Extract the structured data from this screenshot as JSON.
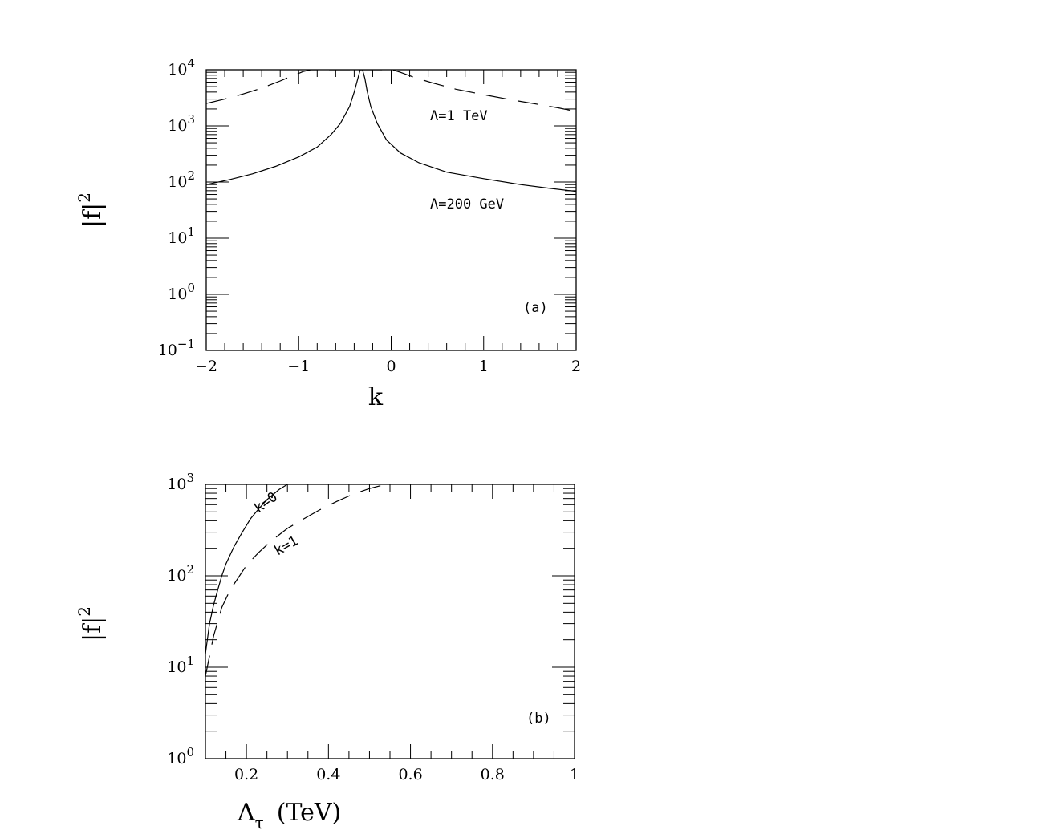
{
  "chart_data": [
    {
      "id": "a",
      "type": "line",
      "panel_label": "(a)",
      "xlabel": "k",
      "ylabel": "|f|",
      "ylabel_sup": "2",
      "xlim": [
        -2,
        2
      ],
      "ylim": [
        0.1,
        10000
      ],
      "yscale": "log",
      "x_ticks": [
        -2,
        -1,
        0,
        1,
        2
      ],
      "x_tick_labels": [
        "−2",
        "−1",
        "0",
        "1",
        "2"
      ],
      "y_ticks": [
        0.1,
        1,
        10,
        100,
        1000,
        10000
      ],
      "y_tick_labels": [
        {
          "base": "10",
          "exp": "−1"
        },
        {
          "base": "10",
          "exp": "0"
        },
        {
          "base": "10",
          "exp": "1"
        },
        {
          "base": "10",
          "exp": "2"
        },
        {
          "base": "10",
          "exp": "3"
        },
        {
          "base": "10",
          "exp": "4"
        }
      ],
      "annotations": [
        "Λ=1 TeV",
        "Λ=200 GeV"
      ],
      "series": [
        {
          "style": "solid",
          "x": [
            -2.0,
            -1.75,
            -1.5,
            -1.25,
            -1.0,
            -0.8,
            -0.65,
            -0.55,
            -0.45,
            -0.4,
            -0.36,
            -0.335,
            -0.31,
            -0.285,
            -0.26,
            -0.22,
            -0.15,
            -0.05,
            0.1,
            0.3,
            0.6,
            1.0,
            1.4,
            1.7,
            2.0
          ],
          "y": [
            90,
            110,
            140,
            190,
            280,
            420,
            700,
            1100,
            2200,
            4000,
            7000,
            10000,
            10000,
            7000,
            4200,
            2200,
            1100,
            560,
            330,
            220,
            150,
            115,
            90,
            78,
            68
          ]
        },
        {
          "style": "dashed",
          "x": [
            -2.0,
            -1.8,
            -1.6,
            -1.4,
            -1.2,
            -1.05,
            -0.95,
            -0.87,
            0.01,
            0.1,
            0.25,
            0.45,
            0.7,
            1.0,
            1.3,
            1.6,
            1.8,
            2.0
          ],
          "y": [
            2500,
            3000,
            3700,
            4700,
            6300,
            8000,
            9300,
            10000,
            10000,
            9000,
            7300,
            5800,
            4500,
            3600,
            2900,
            2400,
            2100,
            1800
          ]
        }
      ]
    },
    {
      "id": "b",
      "type": "line",
      "panel_label": "(b)",
      "xlabel": "Λ",
      "xlabel_sub": "τ",
      "xlabel_unit": "(TeV)",
      "ylabel": "|f|",
      "ylabel_sup": "2",
      "xlim": [
        0.1,
        1.0
      ],
      "ylim": [
        1,
        1000
      ],
      "yscale": "log",
      "x_ticks": [
        0.2,
        0.4,
        0.6,
        0.8,
        1.0
      ],
      "x_tick_labels": [
        "0.2",
        "0.4",
        "0.6",
        "0.8",
        "1"
      ],
      "y_ticks": [
        1,
        10,
        100,
        1000
      ],
      "y_tick_labels": [
        {
          "base": "10",
          "exp": "0"
        },
        {
          "base": "10",
          "exp": "1"
        },
        {
          "base": "10",
          "exp": "2"
        },
        {
          "base": "10",
          "exp": "3"
        }
      ],
      "annotations": [
        "k=0",
        "k=1"
      ],
      "series": [
        {
          "style": "solid",
          "x": [
            0.1,
            0.11,
            0.12,
            0.13,
            0.14,
            0.15,
            0.17,
            0.19,
            0.21,
            0.23,
            0.25,
            0.28,
            0.3
          ],
          "y": [
            14,
            30,
            48,
            70,
            100,
            135,
            210,
            300,
            420,
            540,
            680,
            880,
            1000
          ]
        },
        {
          "style": "dashed",
          "x": [
            0.1,
            0.12,
            0.14,
            0.16,
            0.18,
            0.2,
            0.23,
            0.26,
            0.3,
            0.34,
            0.38,
            0.42,
            0.46,
            0.5,
            0.54
          ],
          "y": [
            8,
            22,
            45,
            70,
            95,
            130,
            180,
            240,
            330,
            420,
            530,
            650,
            780,
            900,
            1000
          ]
        }
      ]
    }
  ]
}
